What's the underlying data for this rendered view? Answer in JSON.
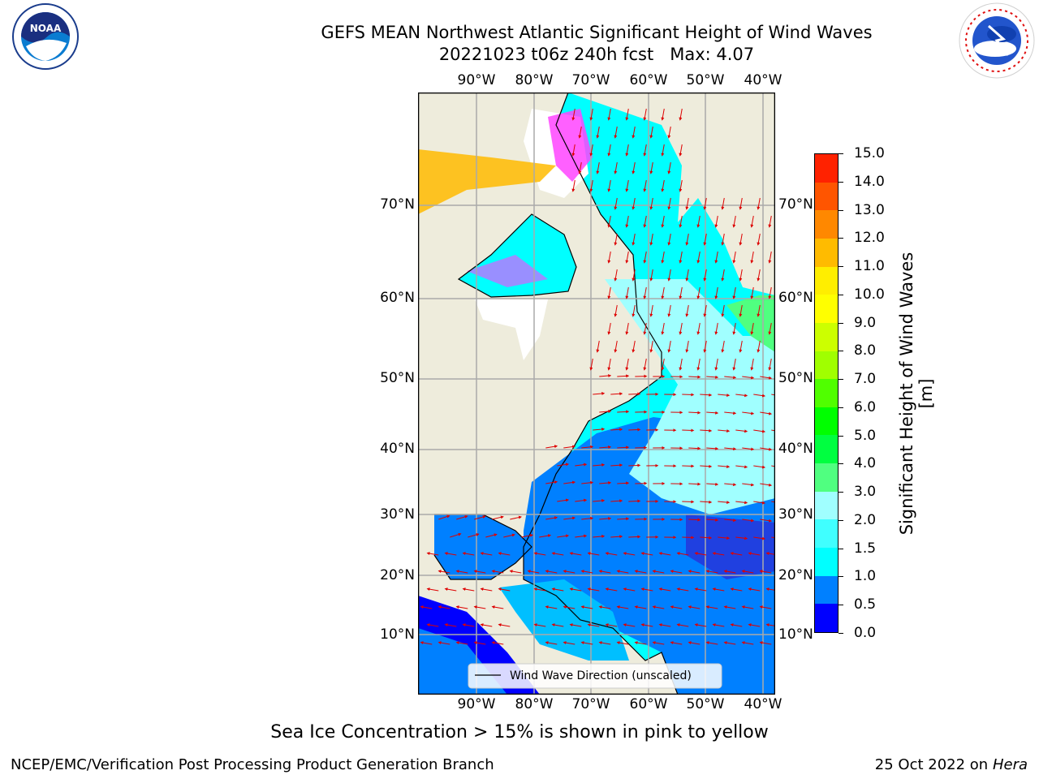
{
  "header": {
    "title": "GEFS MEAN Northwest Atlantic Significant Height of Wind Waves",
    "subtitle": "20221023 t06z 240h fcst   Max: 4.07",
    "noaa_logo_text": "NOAA",
    "nws_logo_text": "NATIONAL WEATHER SERVICE"
  },
  "map": {
    "lon_labels": [
      "90°W",
      "80°W",
      "70°W",
      "60°W",
      "50°W",
      "40°W"
    ],
    "lat_labels": [
      "70°N",
      "60°N",
      "50°N",
      "40°N",
      "30°N",
      "20°N",
      "10°N"
    ],
    "legend_label": "Wind Wave Direction (unscaled)",
    "colors": {
      "land": "#eeecdc",
      "ocean_low": "#0000ff",
      "ocean_mid": "#00ffff",
      "arrows": "#dd0000"
    }
  },
  "colorbar": {
    "label": "Significant Height of Wind Waves [m]",
    "ticks": [
      "15.0",
      "14.0",
      "13.0",
      "12.0",
      "11.0",
      "10.0",
      "9.0",
      "8.0",
      "7.0",
      "6.0",
      "5.0",
      "4.0",
      "3.0",
      "2.0",
      "1.5",
      "1.0",
      "0.5",
      "0.0"
    ],
    "colors": [
      "#0000ff",
      "#0080ff",
      "#00ffff",
      "#40ffff",
      "#a0ffff",
      "#50ff80",
      "#00ff40",
      "#00ff00",
      "#50ff00",
      "#a0ff00",
      "#ccff00",
      "#ffff00",
      "#ffee00",
      "#ffbb00",
      "#ff8800",
      "#ff5500",
      "#ff2200",
      "#ff0000"
    ]
  },
  "footer": {
    "note": "Sea Ice Concentration > 15% is shown in pink to yellow",
    "left": "NCEP/EMC/Verification Post Processing Product Generation Branch",
    "right_prefix": "25 Oct 2022 on",
    "right_machine": "Hera"
  }
}
